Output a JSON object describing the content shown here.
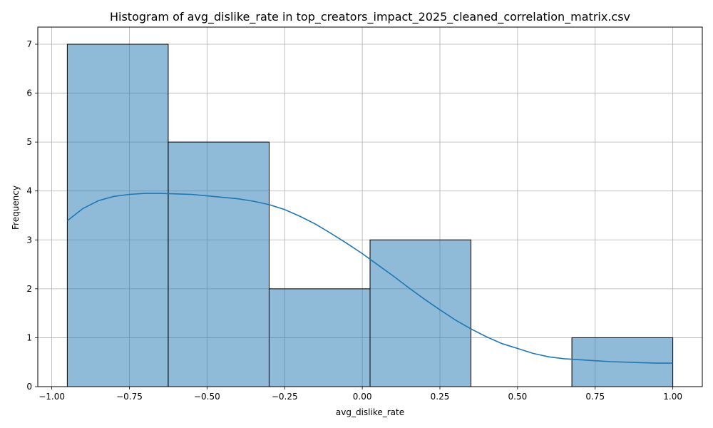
{
  "chart_data": {
    "type": "bar",
    "title": "Histogram of avg_dislike_rate in top_creators_impact_2025_cleaned_correlation_matrix.csv",
    "xlabel": "avg_dislike_rate",
    "ylabel": "Frequency",
    "xlim": [
      -1.045,
      1.095
    ],
    "ylim": [
      0,
      7.35
    ],
    "grid": true,
    "bar_color": "#1f77b4",
    "bar_alpha": 0.5,
    "edge_color": "#000000",
    "kde_color": "#1f77b4",
    "bins": [
      {
        "x0": -0.95,
        "x1": -0.625,
        "count": 7
      },
      {
        "x0": -0.625,
        "x1": -0.3,
        "count": 5
      },
      {
        "x0": -0.3,
        "x1": 0.025,
        "count": 2
      },
      {
        "x0": 0.025,
        "x1": 0.35,
        "count": 3
      },
      {
        "x0": 0.35,
        "x1": 0.675,
        "count": 0
      },
      {
        "x0": 0.675,
        "x1": 1.0,
        "count": 1
      }
    ],
    "x_ticks": [
      {
        "value": -1.0,
        "label": "−1.00"
      },
      {
        "value": -0.75,
        "label": "−0.75"
      },
      {
        "value": -0.5,
        "label": "−0.50"
      },
      {
        "value": -0.25,
        "label": "−0.25"
      },
      {
        "value": 0.0,
        "label": "0.00"
      },
      {
        "value": 0.25,
        "label": "0.25"
      },
      {
        "value": 0.5,
        "label": "0.50"
      },
      {
        "value": 0.75,
        "label": "0.75"
      },
      {
        "value": 1.0,
        "label": "1.00"
      }
    ],
    "y_ticks": [
      {
        "value": 0,
        "label": "0"
      },
      {
        "value": 1,
        "label": "1"
      },
      {
        "value": 2,
        "label": "2"
      },
      {
        "value": 3,
        "label": "3"
      },
      {
        "value": 4,
        "label": "4"
      },
      {
        "value": 5,
        "label": "5"
      },
      {
        "value": 6,
        "label": "6"
      },
      {
        "value": 7,
        "label": "7"
      }
    ],
    "kde": {
      "x": [
        -0.95,
        -0.9,
        -0.85,
        -0.8,
        -0.75,
        -0.7,
        -0.65,
        -0.6,
        -0.55,
        -0.5,
        -0.45,
        -0.4,
        -0.35,
        -0.3,
        -0.25,
        -0.2,
        -0.15,
        -0.1,
        -0.05,
        0.0,
        0.05,
        0.1,
        0.15,
        0.2,
        0.25,
        0.3,
        0.35,
        0.4,
        0.45,
        0.5,
        0.55,
        0.6,
        0.65,
        0.7,
        0.75,
        0.8,
        0.85,
        0.9,
        0.95,
        1.0
      ],
      "y": [
        3.39,
        3.64,
        3.8,
        3.89,
        3.93,
        3.95,
        3.95,
        3.94,
        3.93,
        3.9,
        3.87,
        3.84,
        3.79,
        3.72,
        3.62,
        3.48,
        3.32,
        3.13,
        2.93,
        2.72,
        2.49,
        2.26,
        2.02,
        1.79,
        1.57,
        1.36,
        1.18,
        1.02,
        0.88,
        0.78,
        0.68,
        0.61,
        0.57,
        0.55,
        0.53,
        0.51,
        0.5,
        0.49,
        0.48,
        0.48
      ]
    }
  }
}
